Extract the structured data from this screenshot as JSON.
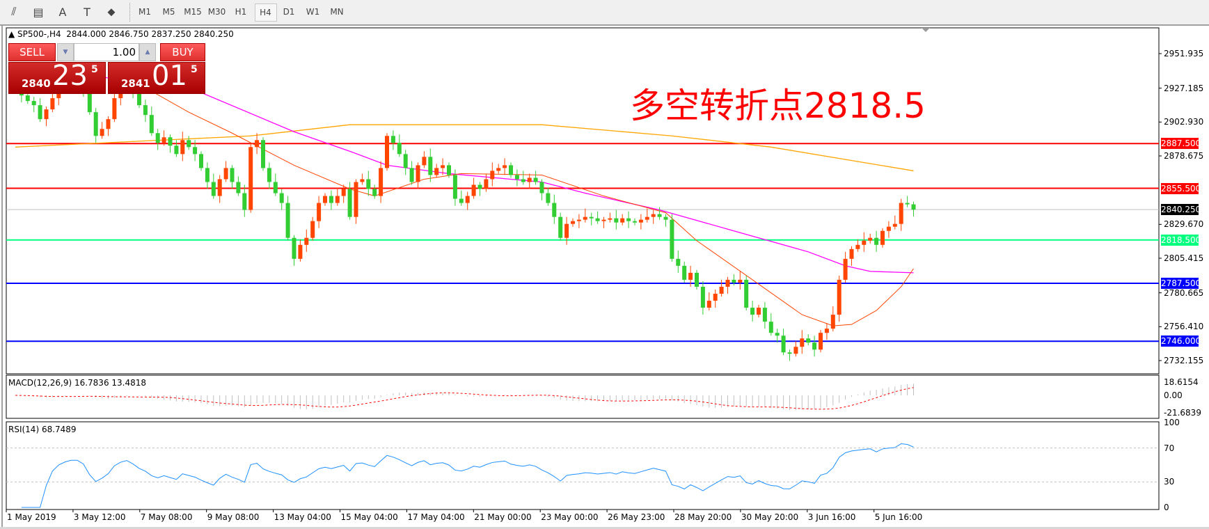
{
  "toolbar": {
    "icons": [
      "expert-advisor-icon",
      "fibonacci-icon",
      "text-icon",
      "text-label-icon",
      "arrows-icon"
    ],
    "icon_glyphs": [
      "⫽",
      "▤",
      "A",
      "T",
      "⬥"
    ],
    "timeframes": [
      "M1",
      "M5",
      "M15",
      "M30",
      "H1",
      "H4",
      "D1",
      "W1",
      "MN"
    ],
    "active_timeframe": "H4"
  },
  "header": {
    "symbol": "SP500-,H4",
    "open": "2844.000",
    "high": "2846.750",
    "low": "2837.250",
    "close": "2840.250"
  },
  "trade_panel": {
    "sell_label": "SELL",
    "buy_label": "BUY",
    "lot": "1.00",
    "sell_price": {
      "prefix": "2840",
      "big": "23",
      "sup": "5"
    },
    "buy_price": {
      "prefix": "2841",
      "big": "01",
      "sup": "5"
    }
  },
  "annotation": "多空转折点2818.5",
  "price_axis": [
    "2951.935",
    "2927.185",
    "2902.930",
    "2878.675",
    "2829.670",
    "2805.415",
    "2780.665",
    "2756.410",
    "2732.155"
  ],
  "levels": [
    {
      "price": 2887.5,
      "label": "2887.500",
      "color": "#ff0000"
    },
    {
      "price": 2855.5,
      "label": "2855.500",
      "color": "#ff0000"
    },
    {
      "price": 2818.5,
      "label": "2818.500",
      "color": "#00ff7f"
    },
    {
      "price": 2787.5,
      "label": "2787.500",
      "color": "#0000ff"
    },
    {
      "price": 2746.0,
      "label": "2746.000",
      "color": "#0000ff"
    }
  ],
  "current_price": {
    "price": 2840.25,
    "label": "2840.250"
  },
  "macd": {
    "label": "MACD(12,26,9) 16.7836 13.4818",
    "axis": [
      "18.6154",
      "0.00",
      "-21.6839"
    ]
  },
  "rsi": {
    "label": "RSI(14) 68.7489",
    "axis": [
      "100",
      "70",
      "30",
      "0"
    ],
    "levels": [
      70,
      30
    ]
  },
  "x_axis": [
    "1 May 2019",
    "3 May 12:00",
    "7 May 08:00",
    "9 May 08:00",
    "13 May 04:00",
    "15 May 04:00",
    "17 May 04:00",
    "21 May 00:00",
    "23 May 00:00",
    "26 May 23:00",
    "28 May 20:00",
    "30 May 20:00",
    "3 Jun 16:00",
    "5 Jun 16:00"
  ],
  "colors": {
    "bull": "#ff4500",
    "bear": "#32cd32",
    "ma_slow": "#ffa500",
    "ma_mid": "#ff00ff",
    "ma_fast": "#ff4500",
    "rsi": "#1e90ff",
    "macd_hist": "#c0c0c0",
    "macd_signal": "#ff0000"
  },
  "chart_data": {
    "type": "candlestick",
    "closes": [
      2925,
      2922,
      2918,
      2915,
      2905,
      2912,
      2920,
      2925,
      2928,
      2930,
      2930,
      2926,
      2910,
      2893,
      2898,
      2905,
      2920,
      2928,
      2932,
      2925,
      2915,
      2908,
      2895,
      2888,
      2892,
      2886,
      2880,
      2890,
      2885,
      2880,
      2870,
      2860,
      2850,
      2862,
      2870,
      2860,
      2852,
      2840,
      2885,
      2890,
      2870,
      2860,
      2852,
      2845,
      2820,
      2805,
      2815,
      2820,
      2832,
      2845,
      2850,
      2845,
      2850,
      2855,
      2835,
      2860,
      2862,
      2855,
      2850,
      2870,
      2893,
      2888,
      2880,
      2870,
      2860,
      2872,
      2878,
      2865,
      2870,
      2872,
      2865,
      2848,
      2845,
      2850,
      2858,
      2855,
      2862,
      2868,
      2870,
      2872,
      2865,
      2862,
      2860,
      2863,
      2860,
      2852,
      2845,
      2835,
      2820,
      2830,
      2832,
      2833,
      2835,
      2834,
      2832,
      2833,
      2834,
      2831,
      2834,
      2832,
      2831,
      2833,
      2835,
      2837,
      2835,
      2833,
      2805,
      2800,
      2790,
      2795,
      2785,
      2770,
      2775,
      2780,
      2785,
      2790,
      2788,
      2790,
      2770,
      2765,
      2770,
      2760,
      2752,
      2750,
      2738,
      2737,
      2742,
      2748,
      2745,
      2740,
      2752,
      2755,
      2765,
      2790,
      2805,
      2812,
      2815,
      2818,
      2820,
      2815,
      2825,
      2828,
      2830,
      2845,
      2844,
      2840.25
    ],
    "ma_slow": [
      [
        0,
        2885
      ],
      [
        38,
        2893
      ],
      [
        54,
        2901
      ],
      [
        85,
        2901
      ],
      [
        106,
        2893
      ],
      [
        122,
        2885
      ],
      [
        145,
        2868
      ]
    ],
    "ma_mid": [
      [
        0,
        2945
      ],
      [
        30,
        2924
      ],
      [
        45,
        2896
      ],
      [
        54,
        2882
      ],
      [
        60,
        2872
      ],
      [
        70,
        2866
      ],
      [
        80,
        2862
      ],
      [
        85,
        2860
      ],
      [
        92,
        2852
      ],
      [
        104,
        2840
      ],
      [
        116,
        2825
      ],
      [
        128,
        2810
      ],
      [
        134,
        2800
      ],
      [
        138,
        2796
      ],
      [
        145,
        2795
      ]
    ],
    "ma_fast": [
      [
        18,
        2935
      ],
      [
        28,
        2910
      ],
      [
        35,
        2895
      ],
      [
        45,
        2872
      ],
      [
        54,
        2855
      ],
      [
        58,
        2850
      ],
      [
        66,
        2862
      ],
      [
        72,
        2866
      ],
      [
        85,
        2865
      ],
      [
        95,
        2850
      ],
      [
        105,
        2838
      ],
      [
        110,
        2818
      ],
      [
        119,
        2790
      ],
      [
        127,
        2765
      ],
      [
        132,
        2757
      ],
      [
        135,
        2758
      ],
      [
        139,
        2768
      ],
      [
        143,
        2785
      ],
      [
        145,
        2798
      ]
    ],
    "ylim": [
      2732.155,
      2951.935
    ]
  }
}
